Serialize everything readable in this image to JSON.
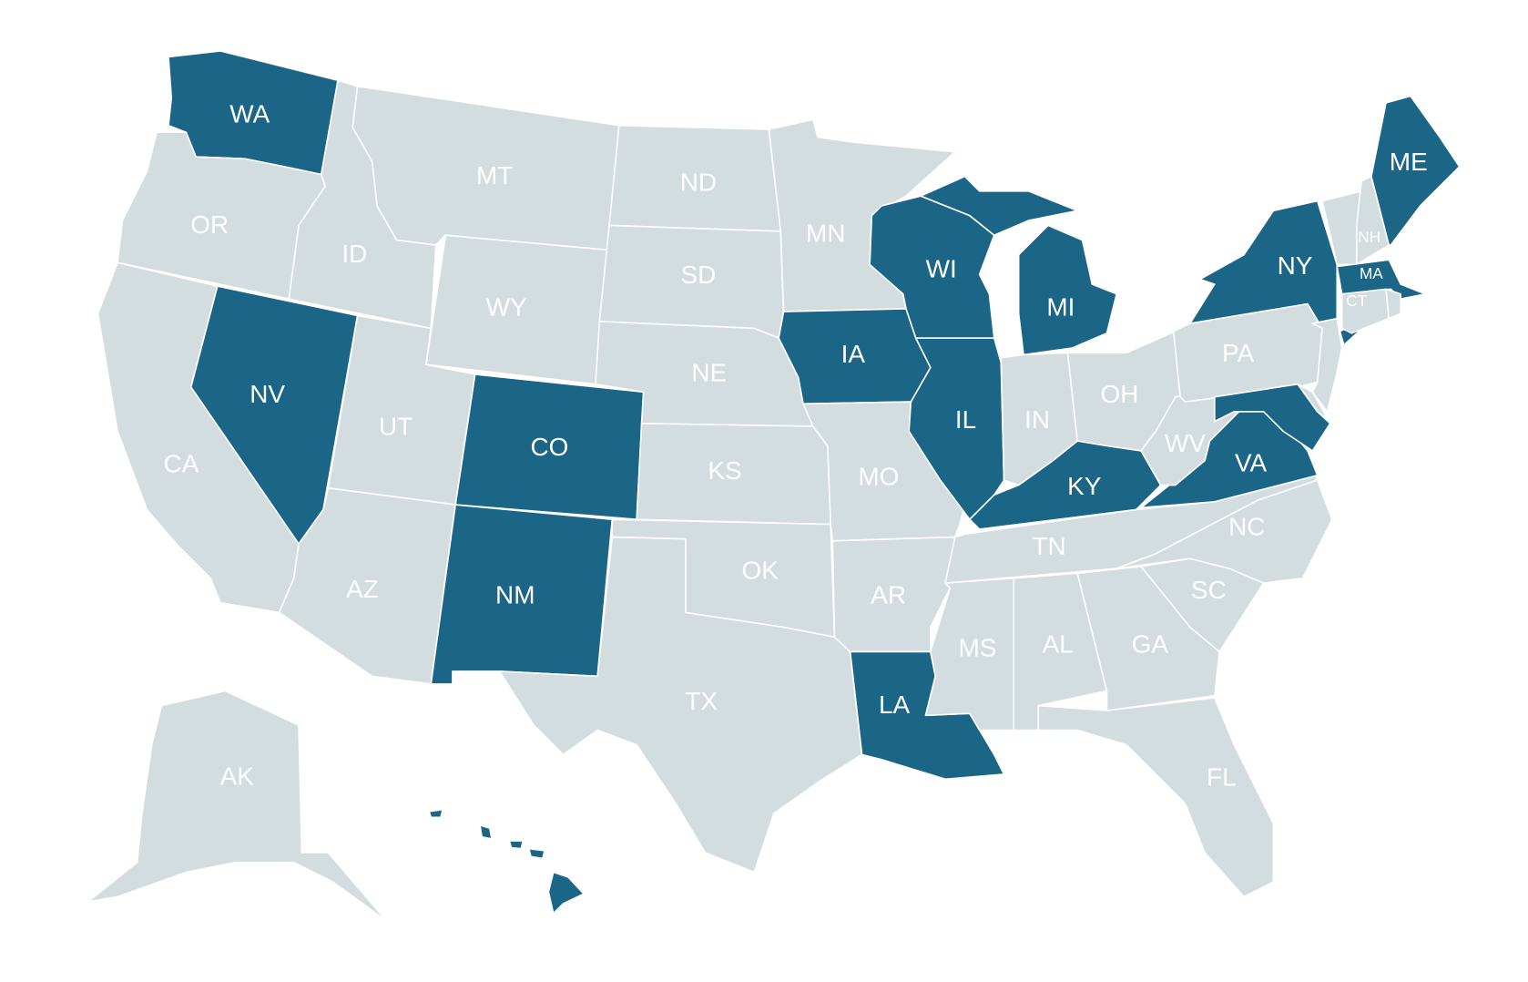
{
  "colors": {
    "highlighted": "#1b6587",
    "default": "#d3dcdf",
    "border": "#ffffff",
    "label": "#ffffff"
  },
  "states": [
    {
      "abbr": "WA",
      "highlighted": true
    },
    {
      "abbr": "OR",
      "highlighted": false
    },
    {
      "abbr": "CA",
      "highlighted": false
    },
    {
      "abbr": "NV",
      "highlighted": true
    },
    {
      "abbr": "ID",
      "highlighted": false
    },
    {
      "abbr": "MT",
      "highlighted": false
    },
    {
      "abbr": "WY",
      "highlighted": false
    },
    {
      "abbr": "UT",
      "highlighted": false
    },
    {
      "abbr": "AZ",
      "highlighted": false
    },
    {
      "abbr": "CO",
      "highlighted": true
    },
    {
      "abbr": "NM",
      "highlighted": true
    },
    {
      "abbr": "ND",
      "highlighted": false
    },
    {
      "abbr": "SD",
      "highlighted": false
    },
    {
      "abbr": "NE",
      "highlighted": false
    },
    {
      "abbr": "KS",
      "highlighted": false
    },
    {
      "abbr": "OK",
      "highlighted": false
    },
    {
      "abbr": "TX",
      "highlighted": false
    },
    {
      "abbr": "MN",
      "highlighted": false
    },
    {
      "abbr": "IA",
      "highlighted": true
    },
    {
      "abbr": "MO",
      "highlighted": false
    },
    {
      "abbr": "AR",
      "highlighted": false
    },
    {
      "abbr": "LA",
      "highlighted": true
    },
    {
      "abbr": "WI",
      "highlighted": true
    },
    {
      "abbr": "IL",
      "highlighted": true
    },
    {
      "abbr": "MI",
      "highlighted": true
    },
    {
      "abbr": "IN",
      "highlighted": false
    },
    {
      "abbr": "OH",
      "highlighted": false
    },
    {
      "abbr": "KY",
      "highlighted": true
    },
    {
      "abbr": "TN",
      "highlighted": false
    },
    {
      "abbr": "MS",
      "highlighted": false
    },
    {
      "abbr": "AL",
      "highlighted": false
    },
    {
      "abbr": "GA",
      "highlighted": false
    },
    {
      "abbr": "FL",
      "highlighted": false
    },
    {
      "abbr": "SC",
      "highlighted": false
    },
    {
      "abbr": "NC",
      "highlighted": false
    },
    {
      "abbr": "VA",
      "highlighted": true
    },
    {
      "abbr": "WV",
      "highlighted": false
    },
    {
      "abbr": "PA",
      "highlighted": false
    },
    {
      "abbr": "NY",
      "highlighted": true
    },
    {
      "abbr": "NJ",
      "highlighted": false
    },
    {
      "abbr": "MD",
      "highlighted": true
    },
    {
      "abbr": "DE",
      "highlighted": false
    },
    {
      "abbr": "VT",
      "highlighted": false
    },
    {
      "abbr": "NH",
      "highlighted": false
    },
    {
      "abbr": "ME",
      "highlighted": true
    },
    {
      "abbr": "MA",
      "highlighted": true
    },
    {
      "abbr": "CT",
      "highlighted": false
    },
    {
      "abbr": "RI",
      "highlighted": false
    },
    {
      "abbr": "AK",
      "highlighted": false
    },
    {
      "abbr": "HI",
      "highlighted": true
    }
  ],
  "labels": [
    "WA",
    "OR",
    "CA",
    "NV",
    "ID",
    "MT",
    "WY",
    "UT",
    "AZ",
    "CO",
    "NM",
    "ND",
    "SD",
    "NE",
    "KS",
    "OK",
    "TX",
    "MN",
    "IA",
    "MO",
    "AR",
    "LA",
    "WI",
    "IL",
    "MI",
    "IN",
    "OH",
    "KY",
    "TN",
    "MS",
    "AL",
    "GA",
    "FL",
    "SC",
    "NC",
    "VA",
    "WV",
    "PA",
    "NY",
    "NH",
    "MA",
    "CT",
    "ME",
    "AK"
  ]
}
